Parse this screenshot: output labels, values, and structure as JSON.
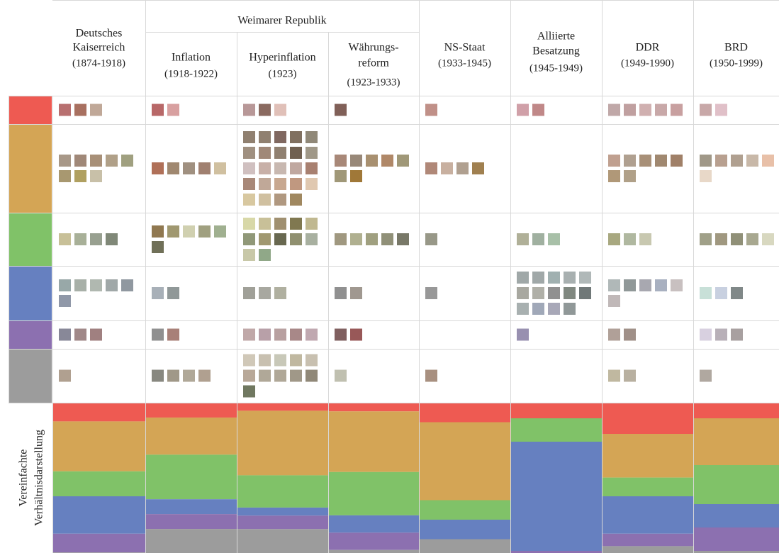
{
  "header": {
    "group": "Weimarer Republik"
  },
  "proportion_label": [
    "Vereinfachte",
    "Verhältnisdarstellung"
  ],
  "categories": [
    {
      "color": "#ee5a52"
    },
    {
      "color": "#d4a555"
    },
    {
      "color": "#80c268"
    },
    {
      "color": "#6680c0"
    },
    {
      "color": "#8c70b0"
    },
    {
      "color": "#9c9c9c"
    }
  ],
  "columns": [
    {
      "lines": [
        "Deutsches",
        "Kaiserreich"
      ],
      "period": "(1874-1918)",
      "swatches": [
        [
          "#b87070",
          "#a87060",
          "#c0a898"
        ],
        [
          "#a89888",
          "#a08878",
          "#a89078",
          "#b0a088",
          "#a0a080",
          "#a89870",
          "#b0a060",
          "#c8c0a8"
        ],
        [
          "#c8c098",
          "#a8b098",
          "#98a090",
          "#808878"
        ],
        [
          "#98a8a8",
          "#a8b0a8",
          "#b0b8b0",
          "#a0a8a8",
          "#9098a0",
          "#9098a8"
        ],
        [
          "#888898",
          "#a08888",
          "#a08080"
        ],
        [
          "#b0a090"
        ]
      ]
    },
    {
      "lines": [
        "Inflation"
      ],
      "period": "(1918-1922)",
      "swatches": [
        [
          "#b86868",
          "#d8a0a0"
        ],
        [
          "#b07058",
          "#a08870",
          "#a09080",
          "#a08070",
          "#d0c0a0"
        ],
        [
          "#907850",
          "#a09870",
          "#d0d0b0",
          "#a0a080",
          "#a0b090",
          "#707058"
        ],
        [
          "#a8b0b8",
          "#909898"
        ],
        [
          "#909090",
          "#a88078"
        ],
        [
          "#888880",
          "#a09888",
          "#b0a898",
          "#b0a090"
        ]
      ]
    },
    {
      "lines": [
        "Hyperinflation"
      ],
      "period": "(1923)",
      "swatches": [
        [
          "#b89898",
          "#8a6a60",
          "#e0c0b8"
        ],
        [
          "#908070",
          "#908070",
          "#806860",
          "#807060",
          "#908878",
          "#a09080",
          "#a08878",
          "#908070",
          "#706050",
          "#a09888",
          "#d0c0c0",
          "#c8b0a8",
          "#c8b8b0",
          "#c0a8a0",
          "#a88070",
          "#a88878",
          "#c0a898",
          "#c8a890",
          "#c09880",
          "#e0c8b0",
          "#d8c8a0",
          "#d0c0a0",
          "#b09880",
          "#a08860"
        ],
        [
          "#d8d8a8",
          "#c8c098",
          "#a09070",
          "#807850",
          "#c0b890",
          "#909878",
          "#a09870",
          "#686850",
          "#909070",
          "#a8b0a0",
          "#c8c8a8",
          "#90a888"
        ],
        [
          "#a0a098",
          "#a8a8a0",
          "#b0b0a0"
        ],
        [
          "#c0a8a8",
          "#b8a0a8",
          "#b8a0a0",
          "#a88888",
          "#c0a8b0"
        ],
        [
          "#d0c8b8",
          "#c8c0b0",
          "#c8c8b8",
          "#c0b8a0",
          "#c8c0b0",
          "#b8a898",
          "#b0a898",
          "#b0a898",
          "#a09888",
          "#908878",
          "#707860"
        ]
      ]
    },
    {
      "lines": [
        "Währungs-",
        "reform"
      ],
      "period": "(1923-1933)",
      "swatches": [
        [
          "#806058"
        ],
        [
          "#a88878",
          "#988878",
          "#a89070",
          "#b08868",
          "#a09878",
          "#a09878",
          "#a07838"
        ],
        [
          "#a09880",
          "#b0b090",
          "#a0a080",
          "#909078",
          "#787868"
        ],
        [
          "#909090",
          "#a09890"
        ],
        [
          "#806060",
          "#985858"
        ],
        [
          "#c0c0b0"
        ]
      ]
    },
    {
      "lines": [
        "NS-Staat"
      ],
      "period": "(1933-1945)",
      "swatches": [
        [
          "#c09088"
        ],
        [
          "#b08878",
          "#c8b0a0",
          "#b0a090",
          "#a08050"
        ],
        [
          "#989888"
        ],
        [
          "#989898"
        ],
        [],
        [
          "#a89080"
        ]
      ]
    },
    {
      "lines": [
        "Alliierte",
        "Besatzung"
      ],
      "period": "(1945-1949)",
      "swatches": [
        [
          "#d0a0a8",
          "#c08888"
        ],
        [],
        [
          "#b0b098",
          "#a0b0a0",
          "#a8c0a8"
        ],
        [
          "#a0a8a8",
          "#a0a8a8",
          "#a0b0b0",
          "#a8b0b0",
          "#b0b8b8",
          "#a8a8a0",
          "#b0b0a8",
          "#909090",
          "#808880",
          "#707878",
          "#a8b0b0",
          "#a0a8b8",
          "#a8a8b8",
          "#909898"
        ],
        [
          "#9890b0"
        ],
        []
      ]
    },
    {
      "lines": [
        "DDR"
      ],
      "period": "(1949-1990)",
      "swatches": [
        [
          "#c0a8a8",
          "#c0a0a0",
          "#d0b0b0",
          "#c8a8a8",
          "#c8a0a0"
        ],
        [
          "#c0a090",
          "#b0a090",
          "#a89078",
          "#a08870",
          "#a08068",
          "#b09878",
          "#b0a088"
        ],
        [
          "#a8a880",
          "#b0b8a0",
          "#c8c8b0"
        ],
        [
          "#b0b8b8",
          "#909898",
          "#a8a8b0",
          "#a8b0c0",
          "#c8c0c0",
          "#c0b8b8"
        ],
        [
          "#b0a098",
          "#a09088"
        ],
        [
          "#c0b8a0",
          "#b8b0a0"
        ]
      ]
    },
    {
      "lines": [
        "BRD"
      ],
      "period": "(1950-1999)",
      "swatches": [
        [
          "#c8a8a8",
          "#e0c0c8"
        ],
        [
          "#a09888",
          "#b8a090",
          "#b0a090",
          "#c8b8a8",
          "#e8c0a8",
          "#e8d8c8"
        ],
        [
          "#a0a088",
          "#a09880",
          "#909078",
          "#a8a890",
          "#d8d8c0"
        ],
        [
          "#c8e0d8",
          "#c8d0e0",
          "#808888"
        ],
        [
          "#d8d0e0",
          "#b8b0b8",
          "#a8a0a0"
        ],
        [
          "#b0a8a0"
        ]
      ]
    }
  ]
}
